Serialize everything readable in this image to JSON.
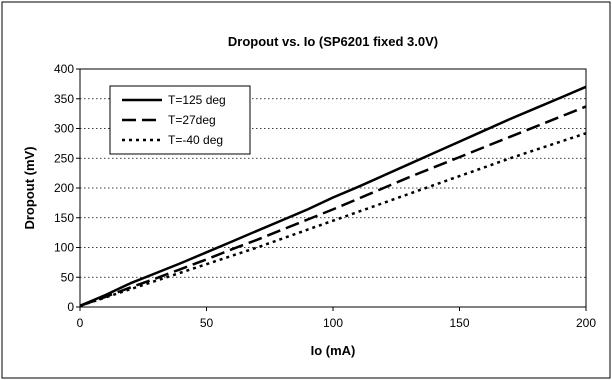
{
  "chart_data": {
    "type": "line",
    "title": "Dropout vs. Io (SP6201 fixed 3.0V)",
    "xlabel": "Io (mA)",
    "ylabel": "Dropout (mV)",
    "xlim": [
      0,
      200
    ],
    "ylim": [
      0,
      400
    ],
    "xticks": [
      0,
      50,
      100,
      150,
      200
    ],
    "yticks": [
      0,
      50,
      100,
      150,
      200,
      250,
      300,
      350,
      400
    ],
    "grid": "horizontal dotted",
    "legend_position": "top-left",
    "series": [
      {
        "name": "T=125 deg",
        "style": "solid",
        "color": "#000000",
        "points": [
          [
            0,
            2
          ],
          [
            10,
            20
          ],
          [
            20,
            40
          ],
          [
            30,
            57
          ],
          [
            40,
            74
          ],
          [
            50,
            92
          ],
          [
            60,
            110
          ],
          [
            70,
            128
          ],
          [
            80,
            146
          ],
          [
            90,
            164
          ],
          [
            100,
            184
          ],
          [
            110,
            202
          ],
          [
            120,
            221
          ],
          [
            130,
            240
          ],
          [
            140,
            259
          ],
          [
            150,
            278
          ],
          [
            160,
            297
          ],
          [
            170,
            316
          ],
          [
            180,
            334
          ],
          [
            190,
            352
          ],
          [
            200,
            370
          ]
        ]
      },
      {
        "name": "T=27deg",
        "style": "long-dash",
        "color": "#000000",
        "points": [
          [
            0,
            2
          ],
          [
            10,
            17
          ],
          [
            20,
            33
          ],
          [
            30,
            48
          ],
          [
            40,
            64
          ],
          [
            50,
            80
          ],
          [
            60,
            97
          ],
          [
            70,
            113
          ],
          [
            80,
            130
          ],
          [
            90,
            147
          ],
          [
            100,
            164
          ],
          [
            110,
            182
          ],
          [
            120,
            200
          ],
          [
            130,
            218
          ],
          [
            140,
            235
          ],
          [
            150,
            252
          ],
          [
            160,
            269
          ],
          [
            170,
            286
          ],
          [
            180,
            303
          ],
          [
            190,
            320
          ],
          [
            200,
            337
          ]
        ]
      },
      {
        "name": "T=-40 deg",
        "style": "dotted",
        "color": "#000000",
        "points": [
          [
            0,
            2
          ],
          [
            10,
            16
          ],
          [
            20,
            30
          ],
          [
            30,
            44
          ],
          [
            40,
            58
          ],
          [
            50,
            72
          ],
          [
            60,
            86
          ],
          [
            70,
            100
          ],
          [
            80,
            115
          ],
          [
            90,
            130
          ],
          [
            100,
            145
          ],
          [
            110,
            160
          ],
          [
            120,
            175
          ],
          [
            130,
            190
          ],
          [
            140,
            205
          ],
          [
            150,
            220
          ],
          [
            160,
            235
          ],
          [
            170,
            250
          ],
          [
            180,
            264
          ],
          [
            190,
            278
          ],
          [
            200,
            292
          ]
        ]
      }
    ]
  }
}
